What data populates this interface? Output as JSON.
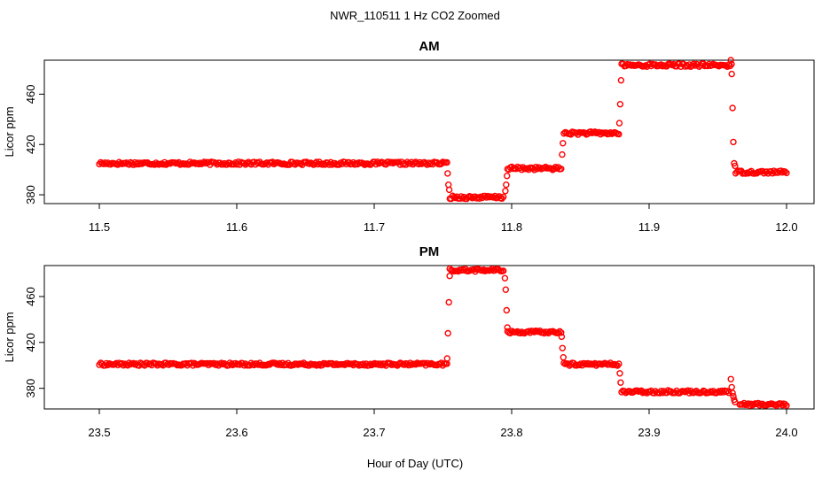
{
  "figure": {
    "title": "NWR_110511  1 Hz CO2 Zoomed",
    "xlabel": "Hour of Day (UTC)"
  },
  "chart_data": [
    {
      "type": "scatter",
      "title": "AM",
      "ylabel": "Licor ppm",
      "xlabel": "",
      "xlim": [
        11.46,
        12.02
      ],
      "ylim": [
        373,
        487
      ],
      "xticks": [
        "11.5",
        "11.6",
        "11.7",
        "11.8",
        "11.9",
        "12.0"
      ],
      "yticks": [
        "380",
        "420",
        "460"
      ],
      "grid": false,
      "legend": "none",
      "color": "#ff0000",
      "marker": "open-circle",
      "segments": [
        {
          "x_start": 11.5,
          "x_end": 11.753,
          "y": 405
        },
        {
          "x_start": 11.755,
          "x_end": 11.794,
          "y": 378
        },
        {
          "x_start": 11.797,
          "x_end": 11.836,
          "y": 401
        },
        {
          "x_start": 11.838,
          "x_end": 11.878,
          "y": 429
        },
        {
          "x_start": 11.88,
          "x_end": 11.96,
          "y": 483
        },
        {
          "x_start": 11.963,
          "x_end": 12.0,
          "y": 398
        }
      ],
      "transitions": [
        {
          "x": 11.754,
          "y": [
            397,
            388,
            384
          ]
        },
        {
          "x": 11.796,
          "y": [
            383,
            388,
            395
          ]
        },
        {
          "x": 11.837,
          "y": [
            412,
            421
          ]
        },
        {
          "x": 11.879,
          "y": [
            437,
            452,
            471
          ]
        },
        {
          "x": 11.961,
          "y": [
            487,
            476,
            449,
            422,
            405,
            403
          ]
        }
      ]
    },
    {
      "type": "scatter",
      "title": "PM",
      "ylabel": "Licor ppm",
      "xlabel": "Hour of Day (UTC)",
      "xlim": [
        23.46,
        24.02
      ],
      "ylim": [
        362,
        487
      ],
      "xticks": [
        "23.5",
        "23.6",
        "23.7",
        "23.8",
        "23.9",
        "24.0"
      ],
      "yticks": [
        "380",
        "420",
        "460"
      ],
      "grid": false,
      "legend": "none",
      "color": "#ff0000",
      "marker": "open-circle",
      "segments": [
        {
          "x_start": 23.5,
          "x_end": 23.753,
          "y": 401
        },
        {
          "x_start": 23.755,
          "x_end": 23.794,
          "y": 483
        },
        {
          "x_start": 23.797,
          "x_end": 23.836,
          "y": 429
        },
        {
          "x_start": 23.838,
          "x_end": 23.878,
          "y": 401
        },
        {
          "x_start": 23.88,
          "x_end": 23.958,
          "y": 377
        },
        {
          "x_start": 23.966,
          "x_end": 24.0,
          "y": 366
        }
      ],
      "transitions": [
        {
          "x": 23.754,
          "y": [
            406,
            428,
            455,
            478
          ]
        },
        {
          "x": 23.796,
          "y": [
            476,
            466,
            448,
            433
          ]
        },
        {
          "x": 23.837,
          "y": [
            425,
            415,
            407
          ]
        },
        {
          "x": 23.879,
          "y": [
            393,
            385
          ]
        },
        {
          "x": 23.961,
          "y": [
            388,
            381,
            376,
            373,
            370,
            368
          ]
        }
      ]
    }
  ]
}
